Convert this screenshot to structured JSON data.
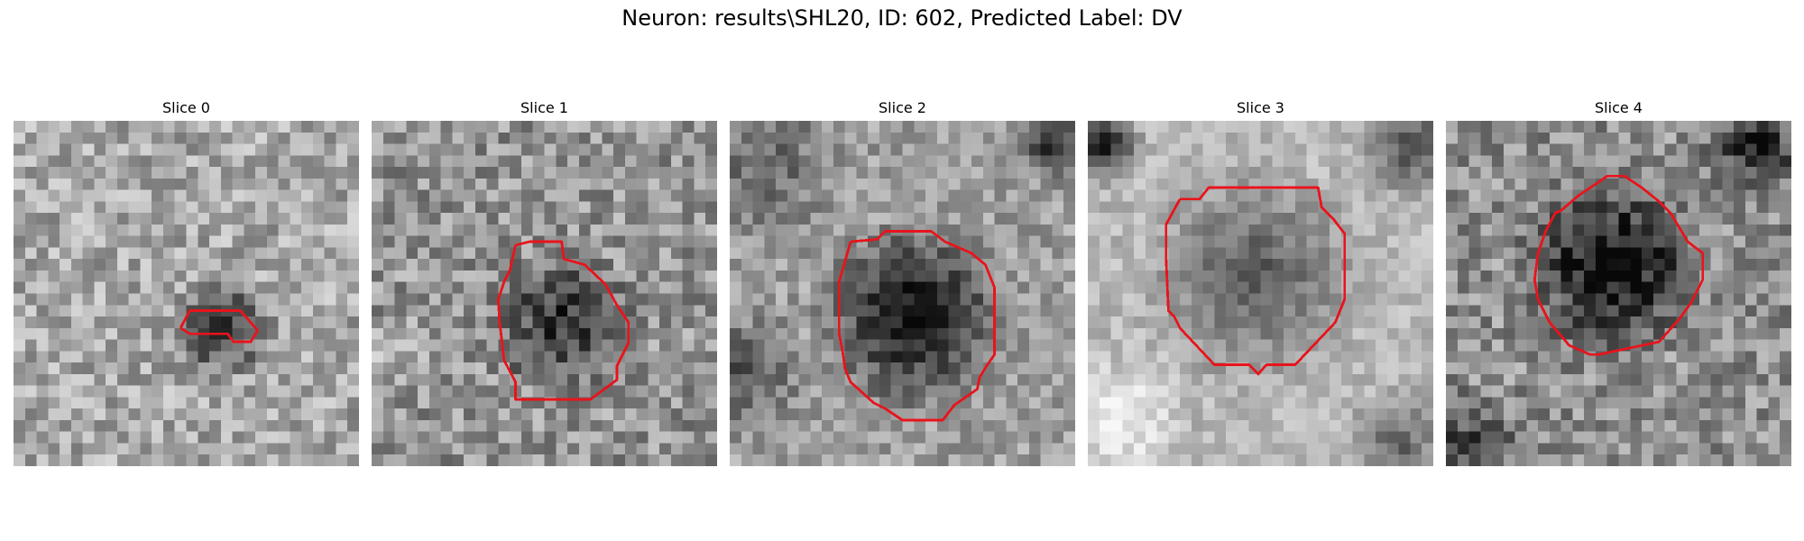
{
  "figure": {
    "title": "Neuron: results\\SHL20, ID: 602, Predicted Label: DV"
  },
  "panels": [
    {
      "title": "Slice 0"
    },
    {
      "title": "Slice 1"
    },
    {
      "title": "Slice 2"
    },
    {
      "title": "Slice 3"
    },
    {
      "title": "Slice 4"
    }
  ],
  "colors": {
    "contour": "#e8141c"
  }
}
